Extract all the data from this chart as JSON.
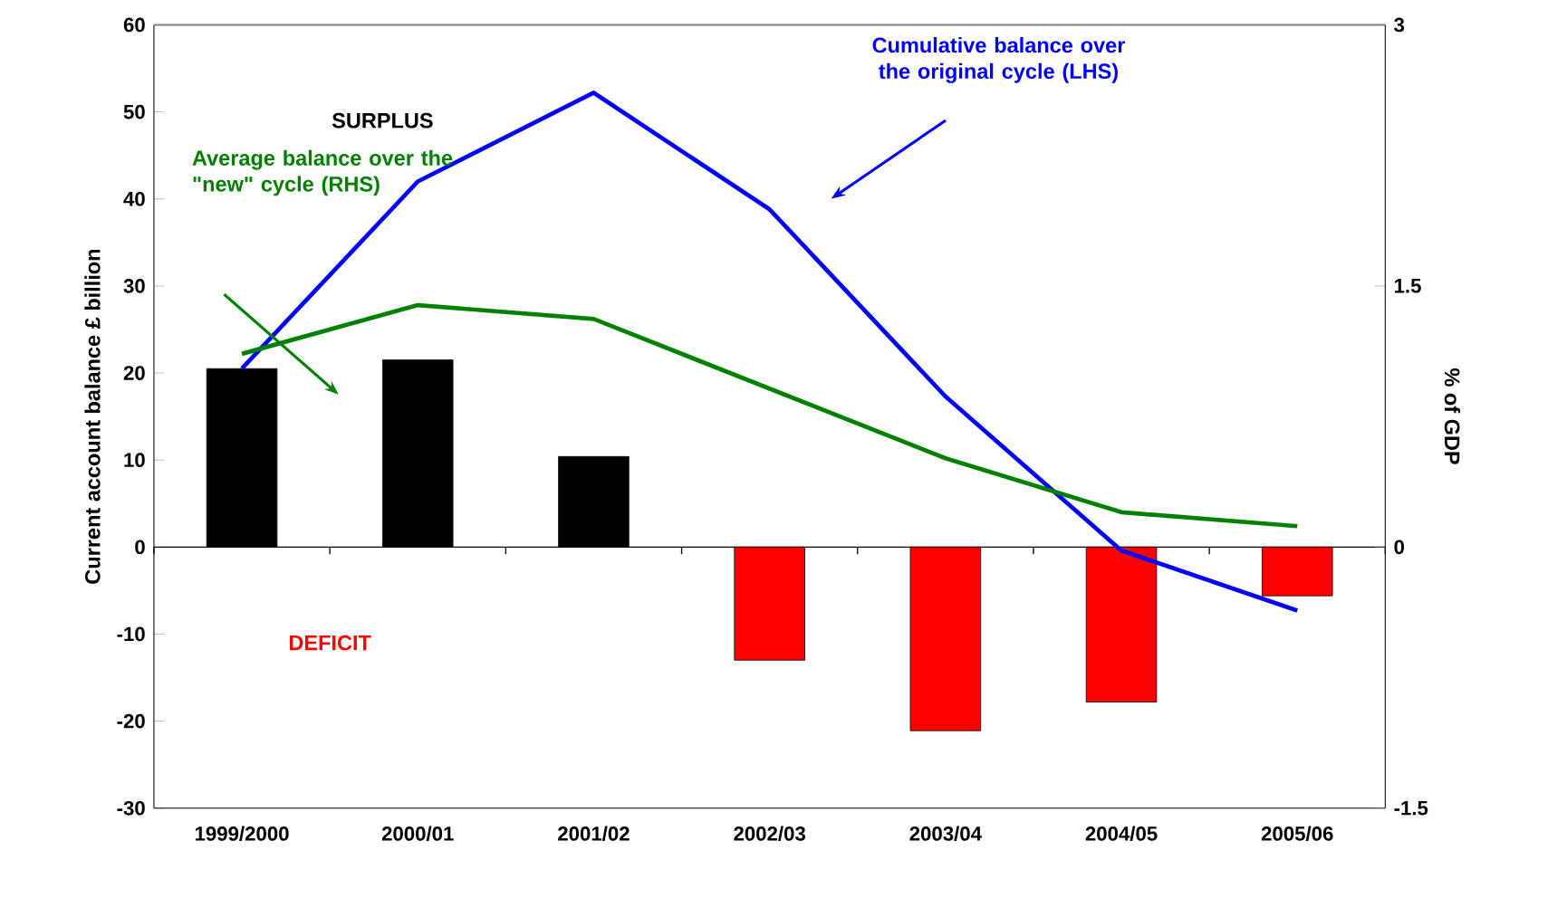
{
  "chart_data": {
    "type": "bar",
    "ylabel": "Current account balance £ billion",
    "y2label": "% of GDP",
    "categories": [
      "1999/2000",
      "2000/01",
      "2001/02",
      "2002/03",
      "2003/04",
      "2004/05",
      "2005/06"
    ],
    "series": [
      {
        "colors": [
          "#000000",
          "#000000",
          "#000000",
          "#ff0000",
          "#ff0000",
          "#ff0000",
          "#ff0000"
        ],
        "values": [
          20.5,
          21.5,
          10.4,
          -13,
          -21.1,
          -17.8,
          -5.6
        ]
      },
      {
        "type": "line",
        "name": "Cumulative balance over the original cycle (LHS)",
        "color": "#0000ff",
        "values": [
          20.5,
          42,
          52.2,
          38.8,
          17.3,
          -0.4,
          -7.3
        ]
      },
      {
        "type": "line",
        "axis": "y2",
        "name": "Average balance over the \"new\" cycle (RHS)",
        "color": "#008000",
        "values": [
          1.11,
          1.39,
          1.31,
          0.91,
          0.51,
          0.2,
          0.12
        ]
      }
    ],
    "ylim": [
      -30,
      60
    ],
    "yticks": [
      -30,
      -20,
      -10,
      0,
      10,
      20,
      30,
      40,
      50,
      60
    ],
    "y2lim": [
      -1.5,
      3
    ],
    "y2ticks": [
      -1.5,
      0,
      1.5,
      3
    ],
    "annotations": [
      "SURPLUS",
      "DEFICIT"
    ]
  }
}
